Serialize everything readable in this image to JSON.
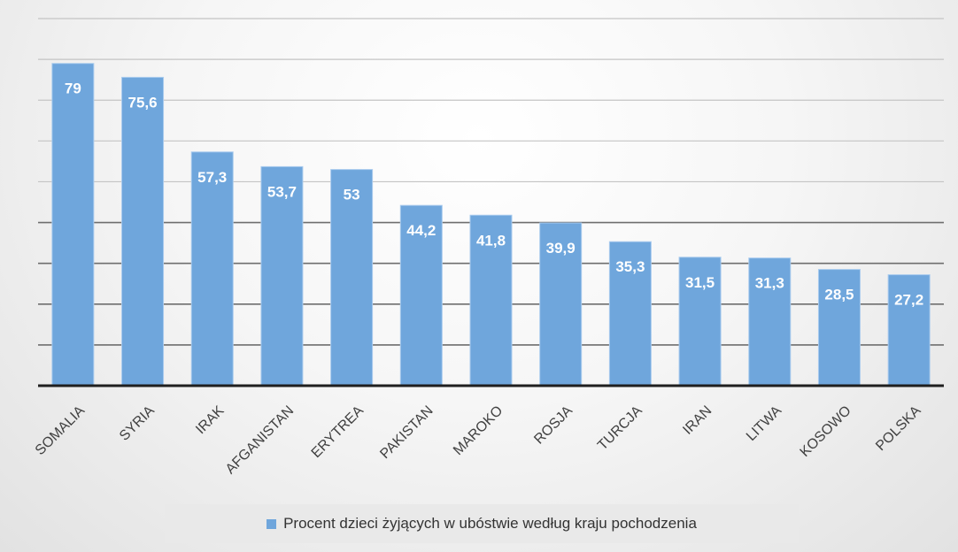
{
  "chart_data": {
    "type": "bar",
    "categories": [
      "SOMALIA",
      "SYRIA",
      "IRAK",
      "AFGANISTAN",
      "ERYTREA",
      "PAKISTAN",
      "MAROKO",
      "ROSJA",
      "TURCJA",
      "IRAN",
      "LITWA",
      "KOSOWO",
      "POLSKA"
    ],
    "series": [
      {
        "name": "Procent dzieci żyjących w ubóstwie według kraju pochodzenia",
        "values": [
          79,
          75.6,
          57.3,
          53.7,
          53,
          44.2,
          41.8,
          39.9,
          35.3,
          31.5,
          31.3,
          28.5,
          27.2
        ],
        "labels": [
          "79",
          "75,6",
          "57,3",
          "53,7",
          "53",
          "44,2",
          "41,8",
          "39,9",
          "35,3",
          "31,5",
          "31,3",
          "28,5",
          "27,2"
        ]
      }
    ],
    "ylim": [
      0,
      90
    ],
    "ytick_step": 10,
    "grid": true,
    "legend_position": "bottom",
    "bar_color": "#6fa6dc"
  }
}
